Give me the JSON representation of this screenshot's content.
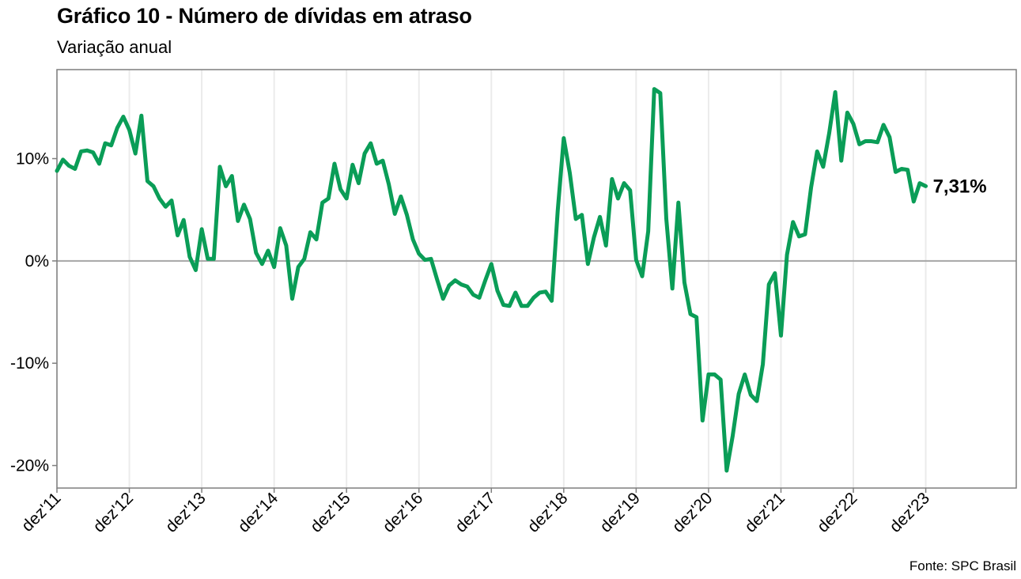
{
  "title": "Gráfico 10 - Número de dívidas em atraso",
  "subtitle": "Variação anual",
  "source": "Fonte: SPC Brasil",
  "colors": {
    "line": "#0a9d57",
    "frame": "#7f7f7f",
    "grid": "#ebebeb",
    "zero": "#a6a6a6"
  },
  "chart_data": {
    "type": "line",
    "title": "Gráfico 10 - Número de dívidas em atraso",
    "subtitle": "Variação anual",
    "xlabel": "",
    "ylabel": "",
    "x_tick_labels": [
      "dez'11",
      "dez'12",
      "dez'13",
      "dez'14",
      "dez'15",
      "dez'16",
      "dez'17",
      "dez'18",
      "dez'19",
      "dez'20",
      "dez'21",
      "dez'22",
      "dez'23"
    ],
    "y_tick_values": [
      -20,
      -10,
      0,
      10
    ],
    "y_tick_labels": [
      "-20%",
      "-10%",
      "0%",
      "10%"
    ],
    "ylim": [
      -22.2,
      18.7
    ],
    "x_range_months": [
      0,
      159
    ],
    "grid": "vertical-only",
    "end_label": "7,31%",
    "series": [
      {
        "values": [
          8.8,
          9.9,
          9.3,
          9.0,
          10.7,
          10.8,
          10.6,
          9.5,
          11.5,
          11.3,
          13.0,
          14.1,
          12.8,
          10.5,
          14.2,
          7.8,
          7.3,
          6.1,
          5.3,
          5.9,
          2.5,
          4.0,
          0.4,
          -0.9,
          3.1,
          0.2,
          0.2,
          9.2,
          7.3,
          8.3,
          3.9,
          5.5,
          4.1,
          0.8,
          -0.3,
          1.0,
          -0.6,
          3.2,
          1.5,
          -3.7,
          -0.6,
          0.2,
          2.8,
          2.1,
          5.7,
          6.1,
          9.5,
          7.0,
          6.1,
          9.4,
          7.6,
          10.5,
          11.5,
          9.5,
          9.8,
          7.5,
          4.6,
          6.3,
          4.5,
          2.1,
          0.7,
          0.1,
          0.2,
          -1.8,
          -3.7,
          -2.4,
          -1.9,
          -2.3,
          -2.5,
          -3.3,
          -3.6,
          -1.9,
          -0.3,
          -2.9,
          -4.3,
          -4.4,
          -3.1,
          -4.4,
          -4.4,
          -3.6,
          -3.1,
          -3.0,
          -3.9,
          4.9,
          12.0,
          8.6,
          4.1,
          4.5,
          -0.3,
          2.3,
          4.3,
          1.5,
          8.0,
          6.1,
          7.6,
          6.9,
          0.1,
          -1.5,
          2.9,
          16.8,
          16.4,
          4.1,
          -2.7,
          5.7,
          -2.1,
          -5.2,
          -5.5,
          -15.6,
          -11.1,
          -11.1,
          -11.6,
          -20.5,
          -17.1,
          -13.0,
          -11.1,
          -13.1,
          -13.7,
          -10.1,
          -2.3,
          -1.2,
          -7.3,
          0.6,
          3.8,
          2.4,
          2.6,
          7.2,
          10.7,
          9.2,
          12.5,
          16.5,
          9.8,
          14.5,
          13.4,
          11.4,
          11.7,
          11.7,
          11.6,
          13.3,
          12.1,
          8.7,
          9.0,
          8.9,
          5.8,
          7.6,
          7.31
        ]
      }
    ]
  }
}
